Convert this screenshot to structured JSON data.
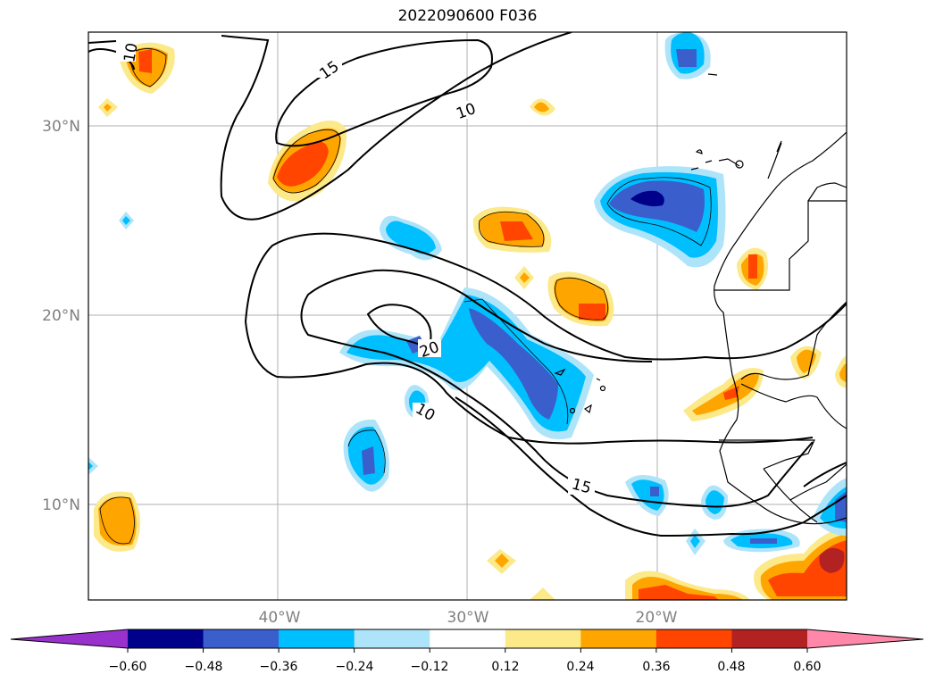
{
  "title": "2022090600 F036",
  "map": {
    "lat_ticks": [
      "30°N",
      "20°N",
      "10°N"
    ],
    "lon_ticks": [
      "40°W",
      "30°W",
      "20°W"
    ]
  },
  "contour_labels": [
    "10",
    "15",
    "10",
    "20",
    "10",
    "15"
  ],
  "colorbar": {
    "tick_labels": [
      "−0.60",
      "−0.48",
      "−0.36",
      "−0.24",
      "−0.12",
      "0.12",
      "0.24",
      "0.36",
      "0.48",
      "0.60"
    ],
    "colors": [
      "#9932cc",
      "#00008b",
      "#3a5fcd",
      "#00bfff",
      "#aee4fa",
      "#ffffff",
      "#fce98a",
      "#ffa500",
      "#ff4500",
      "#b22222",
      "#ff88aa"
    ]
  }
}
